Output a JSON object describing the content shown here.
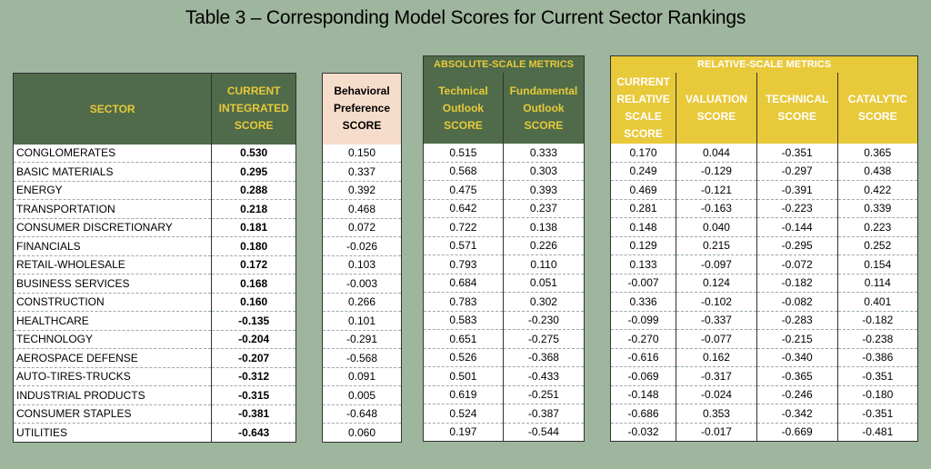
{
  "title": "Table 3 – Corresponding Model Scores for Current Sector Rankings",
  "groups": {
    "absolute": "ABSOLUTE-SCALE METRICS",
    "relative": "RELATIVE-SCALE METRICS"
  },
  "headers": {
    "sector": "SECTOR",
    "current_integrated": [
      "CURRENT",
      "INTEGRATED",
      "SCORE"
    ],
    "behavioral": [
      "Behavioral",
      "Preference",
      "SCORE"
    ],
    "technical_outlook": [
      "Technical",
      "Outlook",
      "SCORE"
    ],
    "fundamental_outlook": [
      "Fundamental",
      "Outlook",
      "SCORE"
    ],
    "current_relative": [
      "CURRENT",
      "RELATIVE",
      "SCALE",
      "SCORE"
    ],
    "valuation": [
      "VALUATION",
      "SCORE"
    ],
    "technical": [
      "TECHNICAL",
      "SCORE"
    ],
    "catalytic": [
      "CATALYTIC",
      "SCORE"
    ]
  },
  "rows": [
    {
      "sector": "CONGLOMERATES",
      "integrated": "0.530",
      "behavioral": "0.150",
      "tech_outlook": "0.515",
      "fund_outlook": "0.333",
      "relative": "0.170",
      "valuation": "0.044",
      "technical": "-0.351",
      "catalytic": "0.365"
    },
    {
      "sector": "BASIC MATERIALS",
      "integrated": "0.295",
      "behavioral": "0.337",
      "tech_outlook": "0.568",
      "fund_outlook": "0.303",
      "relative": "0.249",
      "valuation": "-0.129",
      "technical": "-0.297",
      "catalytic": "0.438"
    },
    {
      "sector": "ENERGY",
      "integrated": "0.288",
      "behavioral": "0.392",
      "tech_outlook": "0.475",
      "fund_outlook": "0.393",
      "relative": "0.469",
      "valuation": "-0.121",
      "technical": "-0.391",
      "catalytic": "0.422"
    },
    {
      "sector": "TRANSPORTATION",
      "integrated": "0.218",
      "behavioral": "0.468",
      "tech_outlook": "0.642",
      "fund_outlook": "0.237",
      "relative": "0.281",
      "valuation": "-0.163",
      "technical": "-0.223",
      "catalytic": "0.339"
    },
    {
      "sector": "CONSUMER DISCRETIONARY",
      "integrated": "0.181",
      "behavioral": "0.072",
      "tech_outlook": "0.722",
      "fund_outlook": "0.138",
      "relative": "0.148",
      "valuation": "0.040",
      "technical": "-0.144",
      "catalytic": "0.223"
    },
    {
      "sector": "FINANCIALS",
      "integrated": "0.180",
      "behavioral": "-0.026",
      "tech_outlook": "0.571",
      "fund_outlook": "0.226",
      "relative": "0.129",
      "valuation": "0.215",
      "technical": "-0.295",
      "catalytic": "0.252"
    },
    {
      "sector": "RETAIL-WHOLESALE",
      "integrated": "0.172",
      "behavioral": "0.103",
      "tech_outlook": "0.793",
      "fund_outlook": "0.110",
      "relative": "0.133",
      "valuation": "-0.097",
      "technical": "-0.072",
      "catalytic": "0.154"
    },
    {
      "sector": "BUSINESS SERVICES",
      "integrated": "0.168",
      "behavioral": "-0.003",
      "tech_outlook": "0.684",
      "fund_outlook": "0.051",
      "relative": "-0.007",
      "valuation": "0.124",
      "technical": "-0.182",
      "catalytic": "0.114"
    },
    {
      "sector": "CONSTRUCTION",
      "integrated": "0.160",
      "behavioral": "0.266",
      "tech_outlook": "0.783",
      "fund_outlook": "0.302",
      "relative": "0.336",
      "valuation": "-0.102",
      "technical": "-0.082",
      "catalytic": "0.401"
    },
    {
      "sector": "HEALTHCARE",
      "integrated": "-0.135",
      "behavioral": "0.101",
      "tech_outlook": "0.583",
      "fund_outlook": "-0.230",
      "relative": "-0.099",
      "valuation": "-0.337",
      "technical": "-0.283",
      "catalytic": "-0.182"
    },
    {
      "sector": "TECHNOLOGY",
      "integrated": "-0.204",
      "behavioral": "-0.291",
      "tech_outlook": "0.651",
      "fund_outlook": "-0.275",
      "relative": "-0.270",
      "valuation": "-0.077",
      "technical": "-0.215",
      "catalytic": "-0.238"
    },
    {
      "sector": "AEROSPACE DEFENSE",
      "integrated": "-0.207",
      "behavioral": "-0.568",
      "tech_outlook": "0.526",
      "fund_outlook": "-0.368",
      "relative": "-0.616",
      "valuation": "0.162",
      "technical": "-0.340",
      "catalytic": "-0.386"
    },
    {
      "sector": "AUTO-TIRES-TRUCKS",
      "integrated": "-0.312",
      "behavioral": "0.091",
      "tech_outlook": "0.501",
      "fund_outlook": "-0.433",
      "relative": "-0.069",
      "valuation": "-0.317",
      "technical": "-0.365",
      "catalytic": "-0.351"
    },
    {
      "sector": "INDUSTRIAL PRODUCTS",
      "integrated": "-0.315",
      "behavioral": "0.005",
      "tech_outlook": "0.619",
      "fund_outlook": "-0.251",
      "relative": "-0.148",
      "valuation": "-0.024",
      "technical": "-0.246",
      "catalytic": "-0.180"
    },
    {
      "sector": "CONSUMER STAPLES",
      "integrated": "-0.381",
      "behavioral": "-0.648",
      "tech_outlook": "0.524",
      "fund_outlook": "-0.387",
      "relative": "-0.686",
      "valuation": "0.353",
      "technical": "-0.342",
      "catalytic": "-0.351"
    },
    {
      "sector": "UTILITIES",
      "integrated": "-0.643",
      "behavioral": "0.060",
      "tech_outlook": "0.197",
      "fund_outlook": "-0.544",
      "relative": "-0.032",
      "valuation": "-0.017",
      "technical": "-0.669",
      "catalytic": "-0.481"
    }
  ],
  "colors": {
    "background": "#9eb59e",
    "header_green": "#4f6b4a",
    "header_yellow": "#e8c93a",
    "header_pink": "#f6dccb"
  }
}
